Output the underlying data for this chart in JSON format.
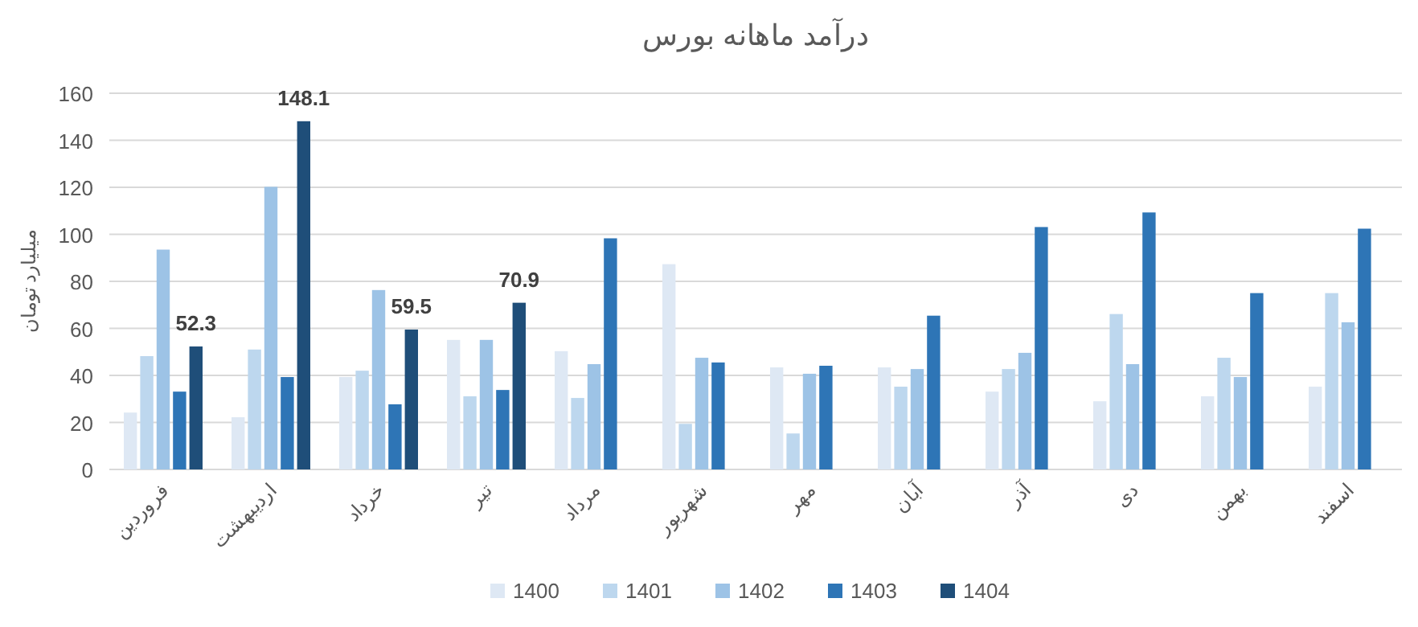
{
  "chart_data": {
    "type": "bar",
    "title": "درآمد ماهانه بورس",
    "ylabel": "میلیارد تومان",
    "categories": [
      "فروردین",
      "اردیبهشت",
      "خرداد",
      "تیر",
      "مرداد",
      "شهریور",
      "مهر",
      "آبان",
      "آذر",
      "دی",
      "بهمن",
      "اسفند"
    ],
    "series": [
      {
        "name": "1400",
        "color": "#dee8f4",
        "values": [
          24.2,
          22.2,
          39.3,
          55.1,
          50.3,
          87.3,
          43.4,
          43.4,
          33.1,
          29,
          31.1,
          35.2
        ]
      },
      {
        "name": "1401",
        "color": "#bdd7ee",
        "values": [
          48.2,
          51,
          42,
          31.1,
          30.4,
          19.4,
          15.3,
          35.2,
          42.7,
          66.1,
          47.5,
          75
        ]
      },
      {
        "name": "1402",
        "color": "#9dc3e6",
        "values": [
          93.5,
          120.2,
          76.3,
          55.1,
          44.8,
          47.5,
          40.7,
          42.7,
          49.6,
          44.8,
          39.3,
          62.6
        ]
      },
      {
        "name": "1403",
        "color": "#2e75b6",
        "values": [
          33.1,
          39.3,
          27.7,
          33.8,
          98.3,
          45.5,
          44.1,
          65.4,
          103.1,
          109.3,
          75,
          102.4
        ]
      },
      {
        "name": "1404",
        "color": "#1f4e79",
        "values": [
          52.3,
          148.1,
          59.5,
          70.9,
          null,
          null,
          null,
          null,
          null,
          null,
          null,
          null
        ],
        "value_labels": [
          "52.3",
          "148.1",
          "59.5",
          "70.9",
          null,
          null,
          null,
          null,
          null,
          null,
          null,
          null
        ]
      }
    ],
    "ylim": [
      0,
      160
    ],
    "yticks": [
      0,
      20,
      40,
      60,
      80,
      100,
      120,
      140,
      160
    ],
    "grid": "y",
    "legend": "bottom"
  }
}
